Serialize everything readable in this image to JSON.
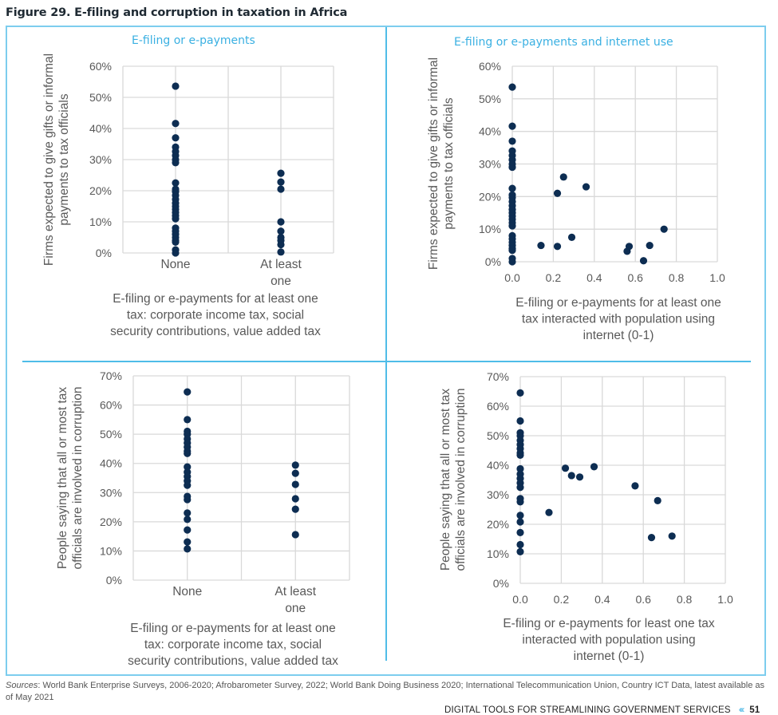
{
  "figure_title": "Figure 29. E-filing and corruption in taxation in Africa",
  "colors": {
    "accent": "#3ab0e2",
    "frame": "#7dcdee",
    "dot": "#0d2d52",
    "grid": "#d9d9d9",
    "text": "#595959"
  },
  "panels": {
    "top_left_title": "E-filing or e-payments",
    "top_right_title": "E-filing or e-payments and internet use"
  },
  "chart_data": [
    {
      "id": "p1",
      "type": "scatter",
      "title": "E-filing or e-payments",
      "xlabel_lines": [
        "E-filing or e-payments for at least one",
        "tax: corporate income tax, social",
        "security contributions, value added tax"
      ],
      "ylabel_lines": [
        "Firms expected to give gifts or informal",
        "payments to tax officials"
      ],
      "categories": [
        "None",
        "At least one"
      ],
      "category_label_lines": [
        [
          "None"
        ],
        [
          "At least",
          "one"
        ]
      ],
      "ylim": [
        0,
        60
      ],
      "yticks": [
        0,
        10,
        20,
        30,
        40,
        50,
        60
      ],
      "ytick_labels": [
        "0%",
        "10%",
        "20%",
        "30%",
        "40%",
        "50%",
        "60%"
      ],
      "grid": true,
      "series": [
        {
          "name": "None",
          "x": 0,
          "values": [
            53.6,
            41.6,
            37,
            34,
            32.6,
            31.3,
            30,
            29,
            22.5,
            20.5,
            19.7,
            18.5,
            17.2,
            16,
            15,
            14,
            13,
            12,
            11,
            8,
            7,
            6,
            5,
            4,
            3.5,
            1,
            0
          ]
        },
        {
          "name": "At least one",
          "x": 1,
          "values": [
            25.6,
            22.8,
            20.5,
            10,
            7,
            5,
            4,
            2.7,
            0.3
          ]
        }
      ]
    },
    {
      "id": "p2",
      "type": "scatter",
      "title": "E-filing or e-payments and internet use",
      "xlabel_lines": [
        "E-filing or e-payments for at least one",
        "tax interacted with population using",
        "internet (0-1)"
      ],
      "ylabel_lines": [
        "Firms expected to give gifts or informal",
        "payments to tax officials"
      ],
      "xlim": [
        0,
        1
      ],
      "xticks": [
        0,
        0.2,
        0.4,
        0.6,
        0.8,
        1.0
      ],
      "xtick_labels": [
        "0.0",
        "0.2",
        "0.4",
        "0.6",
        "0.8",
        "1.0"
      ],
      "ylim": [
        0,
        60
      ],
      "yticks": [
        0,
        10,
        20,
        30,
        40,
        50,
        60
      ],
      "ytick_labels": [
        "0%",
        "10%",
        "20%",
        "30%",
        "40%",
        "50%",
        "60%"
      ],
      "grid": true,
      "points": [
        [
          0,
          53.6
        ],
        [
          0,
          41.6
        ],
        [
          0,
          37
        ],
        [
          0,
          34
        ],
        [
          0,
          32.6
        ],
        [
          0,
          31.3
        ],
        [
          0,
          30
        ],
        [
          0,
          29
        ],
        [
          0,
          22.5
        ],
        [
          0,
          20.5
        ],
        [
          0,
          19.7
        ],
        [
          0,
          18.5
        ],
        [
          0,
          17.2
        ],
        [
          0,
          16
        ],
        [
          0,
          15
        ],
        [
          0,
          14
        ],
        [
          0,
          13
        ],
        [
          0,
          12
        ],
        [
          0,
          11
        ],
        [
          0,
          8
        ],
        [
          0,
          7
        ],
        [
          0,
          6
        ],
        [
          0,
          5
        ],
        [
          0,
          4
        ],
        [
          0,
          3.5
        ],
        [
          0,
          1
        ],
        [
          0,
          0
        ],
        [
          0.14,
          5
        ],
        [
          0.22,
          4.7
        ],
        [
          0.22,
          21
        ],
        [
          0.25,
          26
        ],
        [
          0.29,
          7.5
        ],
        [
          0.36,
          23
        ],
        [
          0.56,
          3.2
        ],
        [
          0.57,
          4.7
        ],
        [
          0.64,
          0.3
        ],
        [
          0.67,
          5
        ],
        [
          0.74,
          10
        ]
      ]
    },
    {
      "id": "p3",
      "type": "scatter",
      "title": "",
      "xlabel_lines": [
        "E-filing or e-payments for at least one",
        "tax: corporate income tax, social",
        "security contributions, value added tax"
      ],
      "ylabel_lines": [
        "People saying that all or most tax",
        "officials are involved in corruption"
      ],
      "categories": [
        "None",
        "At least one"
      ],
      "category_label_lines": [
        [
          "None"
        ],
        [
          "At least",
          "one"
        ]
      ],
      "ylim": [
        0,
        70
      ],
      "yticks": [
        0,
        10,
        20,
        30,
        40,
        50,
        60,
        70
      ],
      "ytick_labels": [
        "0%",
        "10%",
        "20%",
        "30%",
        "40%",
        "50%",
        "60%",
        "70%"
      ],
      "grid": true,
      "series": [
        {
          "name": "None",
          "x": 0,
          "values": [
            64.5,
            55,
            51,
            50,
            48.4,
            47,
            45.6,
            44.2,
            43.4,
            38.8,
            37,
            35.5,
            34,
            32.5,
            28.7,
            27.6,
            23,
            20.8,
            17.2,
            13.1,
            10.7
          ]
        },
        {
          "name": "At least one",
          "x": 1,
          "values": [
            39.4,
            36.6,
            32.8,
            27.9,
            24.3,
            15.6
          ]
        }
      ]
    },
    {
      "id": "p4",
      "type": "scatter",
      "title": "",
      "xlabel_lines": [
        "E-filing or e-payments for least one tax",
        "interacted with population using",
        "internet (0-1)"
      ],
      "ylabel_lines": [
        "People saying that all or most tax",
        "officials are involved in corruption"
      ],
      "xlim": [
        0,
        1
      ],
      "xticks": [
        0,
        0.2,
        0.4,
        0.6,
        0.8,
        1.0
      ],
      "xtick_labels": [
        "0.0",
        "0.2",
        "0.4",
        "0.6",
        "0.8",
        "1.0"
      ],
      "ylim": [
        0,
        70
      ],
      "yticks": [
        0,
        10,
        20,
        30,
        40,
        50,
        60,
        70
      ],
      "ytick_labels": [
        "0%",
        "10%",
        "20%",
        "30%",
        "40%",
        "50%",
        "60%",
        "70%"
      ],
      "grid": true,
      "points": [
        [
          0,
          64.5
        ],
        [
          0,
          55
        ],
        [
          0,
          51
        ],
        [
          0,
          50
        ],
        [
          0,
          48.4
        ],
        [
          0,
          47
        ],
        [
          0,
          45.6
        ],
        [
          0,
          44.2
        ],
        [
          0,
          43.4
        ],
        [
          0,
          38.8
        ],
        [
          0,
          37
        ],
        [
          0,
          35.5
        ],
        [
          0,
          34
        ],
        [
          0,
          32.5
        ],
        [
          0,
          28.7
        ],
        [
          0,
          27.6
        ],
        [
          0,
          23
        ],
        [
          0,
          20.8
        ],
        [
          0,
          17.2
        ],
        [
          0,
          13.1
        ],
        [
          0,
          10.7
        ],
        [
          0.14,
          24
        ],
        [
          0.22,
          39
        ],
        [
          0.25,
          36.5
        ],
        [
          0.29,
          36
        ],
        [
          0.36,
          39.5
        ],
        [
          0.56,
          33
        ],
        [
          0.64,
          15.5
        ],
        [
          0.67,
          28
        ],
        [
          0.74,
          16
        ]
      ]
    }
  ],
  "sources": {
    "label": "Sources",
    "text": ": World Bank Enterprise Surveys, 2006-2020; Afrobarometer Survey, 2022; World Bank Doing Business 2020; International Telecommunication Union, Country ICT Data, latest available as of May 2021"
  },
  "footer": {
    "running_title": "DIGITAL TOOLS FOR STREAMLINING GOVERNMENT SERVICES",
    "chevrons": "‹‹‹",
    "page_number": "51"
  }
}
